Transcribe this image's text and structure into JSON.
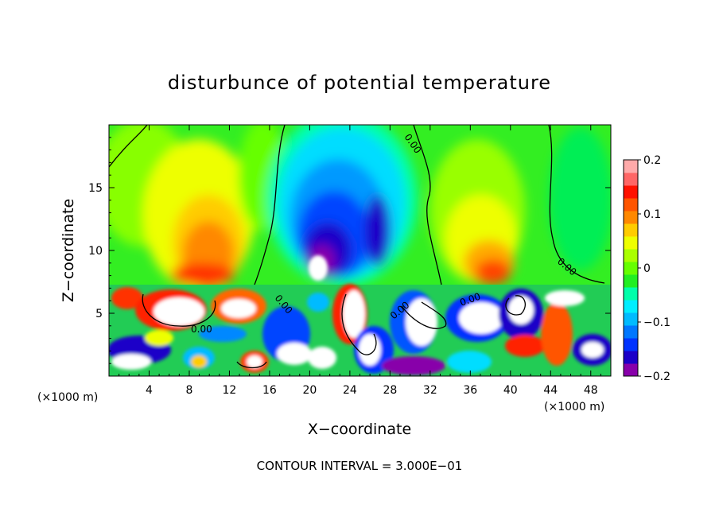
{
  "chart_data": {
    "type": "heatmap",
    "title": "disturbunce of potential temperature",
    "xlabel": "X−coordinate",
    "ylabel": "Z−coordinate",
    "x_unit": "(×1000 m)",
    "y_unit": "(×1000 m)",
    "xlim": [
      0,
      50
    ],
    "ylim": [
      0,
      20
    ],
    "x_ticks": [
      4,
      8,
      12,
      16,
      20,
      24,
      28,
      32,
      36,
      40,
      44,
      48
    ],
    "y_ticks": [
      5,
      10,
      15
    ],
    "x_tick_labels": [
      "4",
      "8",
      "12",
      "16",
      "20",
      "24",
      "28",
      "32",
      "36",
      "40",
      "44",
      "48"
    ],
    "y_tick_labels": [
      "5",
      "10",
      "15"
    ],
    "colorbar": {
      "min": -0.2,
      "max": 0.2,
      "ticks": [
        0.2,
        0.1,
        0,
        -0.1,
        -0.2
      ],
      "tick_labels": [
        "0.2",
        "0.1",
        "0",
        "−0.1",
        "−0.2"
      ],
      "colors": [
        "#8800aa",
        "#1b00c8",
        "#0033ff",
        "#0077ff",
        "#00bbff",
        "#00eeff",
        "#00ffaa",
        "#22ee22",
        "#66ff00",
        "#aaff00",
        "#eeff00",
        "#ffcc00",
        "#ff8800",
        "#ff5500",
        "#ff1100",
        "#ff6666",
        "#ffaaaa"
      ]
    },
    "contour_label": "0.00",
    "contour_interval_text": "CONTOUR INTERVAL = 3.000E−01",
    "grid": false
  }
}
